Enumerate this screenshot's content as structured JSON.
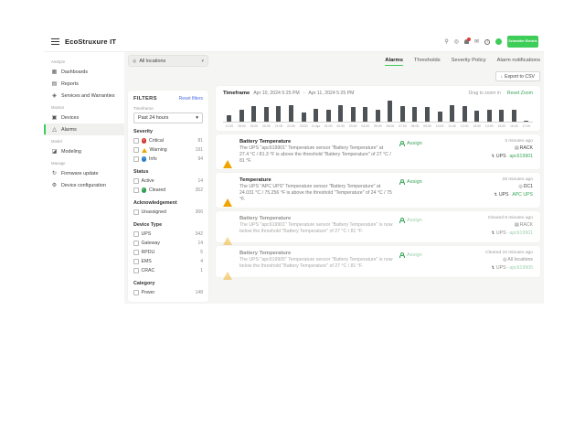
{
  "topbar": {
    "app_title": "EcoStruxure IT",
    "logo_text": "Schneider Electric",
    "icons": [
      "menu-icon",
      "search-icon",
      "globe-icon",
      "notifications-bell-icon",
      "mail-icon",
      "help-icon",
      "user-avatar"
    ]
  },
  "sidebar": {
    "sections": [
      {
        "label": "Analyze",
        "items": [
          {
            "label": "Dashboards"
          },
          {
            "label": "Reports"
          },
          {
            "label": "Services and Warranties"
          }
        ]
      },
      {
        "label": "Monitor",
        "items": [
          {
            "label": "Devices"
          },
          {
            "label": "Alarms"
          }
        ]
      },
      {
        "label": "Model",
        "items": [
          {
            "label": "Modeling"
          }
        ]
      },
      {
        "label": "Manage",
        "items": [
          {
            "label": "Firmware update"
          },
          {
            "label": "Device configuration"
          }
        ]
      }
    ]
  },
  "location_selector": {
    "value": "All locations"
  },
  "tabs": [
    {
      "label": "Alarms",
      "active": true
    },
    {
      "label": "Thresholds",
      "active": false
    },
    {
      "label": "Severity Policy",
      "active": false
    },
    {
      "label": "Alarm notifications",
      "active": false
    }
  ],
  "export_button_label": "Export to CSV",
  "filters": {
    "title": "FILTERS",
    "reset_label": "Reset filters",
    "timeframe_label": "Timeframe",
    "timeframe_value": "Past 24 hours",
    "severity_title": "Severity",
    "severity": [
      {
        "label": "Critical",
        "count": "81"
      },
      {
        "label": "Warning",
        "count": "191"
      },
      {
        "label": "Info",
        "count": "94"
      }
    ],
    "status_title": "Status",
    "status": [
      {
        "label": "Active",
        "count": "14"
      },
      {
        "label": "Cleared",
        "count": "352"
      }
    ],
    "acknowledgement_title": "Acknowledgement",
    "acknowledgement": [
      {
        "label": "Unassigned",
        "count": "366"
      }
    ],
    "device_type_title": "Device Type",
    "device_type": [
      {
        "label": "UPS",
        "count": "342"
      },
      {
        "label": "Gateway",
        "count": "14"
      },
      {
        "label": "RPDU",
        "count": "5"
      },
      {
        "label": "EMS",
        "count": "4"
      },
      {
        "label": "CRAC",
        "count": "1"
      }
    ],
    "category_title": "Category",
    "category": [
      {
        "label": "Power",
        "count": "148"
      }
    ]
  },
  "chart": {
    "timeframe_label": "Timeframe",
    "date_from": "Apr 10, 2024 5:25 PM",
    "date_separator": "-",
    "date_to": "Apr 11, 2024 5:25 PM",
    "drag_hint": "Drag to zoom in",
    "reset_zoom_label": "Reset Zoom"
  },
  "chart_data": {
    "type": "bar",
    "title": "",
    "xlabel": "",
    "ylabel": "",
    "ylim": [
      0,
      100
    ],
    "grid": false,
    "legend": null,
    "bar_color": "#4d5257",
    "categories": [
      "17:00",
      "18:00",
      "19:00",
      "20:00",
      "21:00",
      "22:00",
      "23:00",
      "11 Apr",
      "01:00",
      "02:00",
      "03:00",
      "04:00",
      "05:00",
      "06:00",
      "07:00",
      "08:00",
      "09:00",
      "10:00",
      "11:00",
      "12:00",
      "13:00",
      "14:00",
      "15:00",
      "16:00",
      "17:00"
    ],
    "values": [
      30,
      55,
      70,
      68,
      70,
      75,
      42,
      60,
      55,
      75,
      65,
      65,
      55,
      95,
      70,
      65,
      65,
      45,
      75,
      70,
      50,
      55,
      55,
      55,
      4
    ]
  },
  "alarms": [
    {
      "title": "Battery Temperature",
      "description": "The UPS \"apc619901\" Temperature sensor \"Battery Temperature\" at 27.4 °C / 81.3 °F is above the threshold \"Battery Temperature\" of 27 °C / 81 °F.",
      "assign_label": "Assign",
      "time": "3 minutes ago",
      "location": "RACK",
      "device_type": "UPS",
      "device_sep": "·",
      "device_name": "apc619901"
    },
    {
      "title": "Temperature",
      "description": "The UPS \"APC UPS\" Temperature sensor \"Battery Temperature\" at 24.031 °C / 75.256 °F is above the threshold \"Temperature\" of 24 °C / 75 °F.",
      "assign_label": "Assign",
      "time": "28 minutes ago",
      "location": "DC1",
      "device_type": "UPS",
      "device_sep": "·",
      "device_name": "APC UPS"
    },
    {
      "title": "Battery Temperature",
      "description": "The UPS \"apc619901\" Temperature sensor \"Battery Temperature\" is now below the threshold \"Battery Temperature\" of 27 °C / 81 °F.",
      "assign_label": "Assign",
      "time": "Cleared 8 minutes ago",
      "location": "RACK",
      "device_type": "UPS",
      "device_sep": "·",
      "device_name": "apc619901"
    },
    {
      "title": "Battery Temperature",
      "description": "The UPS \"apc619905\" Temperature sensor \"Battery Temperature\" is now below the threshold \"Battery Temperature\" of 27 °C / 81 °F.",
      "assign_label": "Assign",
      "time": "Cleared 10 minutes ago",
      "location": "All locations",
      "device_type": "UPS",
      "device_sep": "·",
      "device_name": "apc619905"
    }
  ],
  "colors": {
    "brand_green": "#3dcd58",
    "link_green": "#3aa65a",
    "link_blue": "#4a6ee0",
    "critical_red": "#d13b34",
    "warning_amber": "#f0a400",
    "info_blue": "#2b7fc2",
    "cleared_green": "#2e9e4f",
    "bar_gray": "#4d5257",
    "bg_gray": "#f5f5f3"
  }
}
